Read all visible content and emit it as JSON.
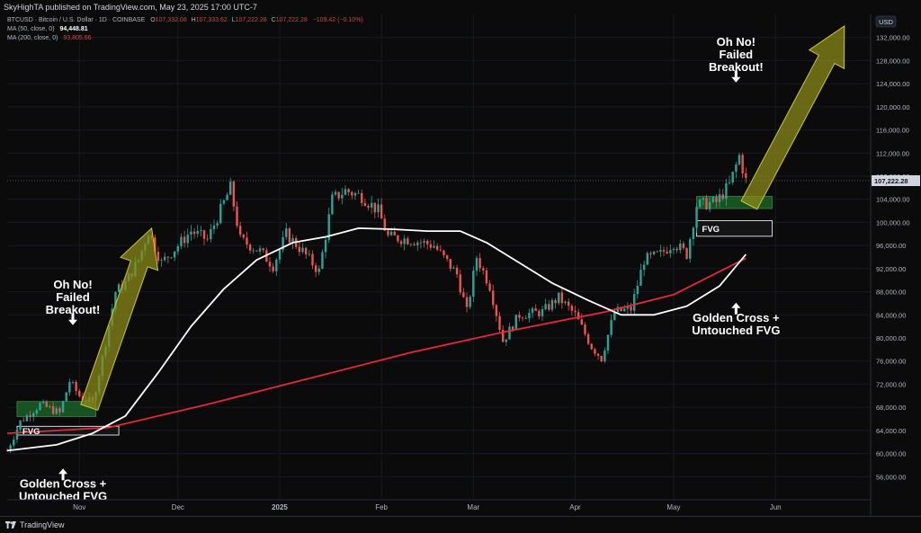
{
  "header": {
    "publisher_line": "SkyHighTA published on TradingView.com, May 23, 2025 17:00 UTC-7"
  },
  "legend": {
    "symbol": "BTCUSD · Bitcoin / U.S. Dollar · 1D · COINBASE",
    "ohlc": [
      {
        "k": "O",
        "v": "107,332.08"
      },
      {
        "k": "H",
        "v": "107,333.62"
      },
      {
        "k": "L",
        "v": "107,222.28"
      },
      {
        "k": "C",
        "v": "107,222.28"
      }
    ],
    "change": "−109.42 (−0.10%)",
    "ma50_label": "MA (50, close, 0)",
    "ma50_value": "94,448.81",
    "ma200_label": "MA (200, close, 0)",
    "ma200_value": "93,805.66"
  },
  "footer": {
    "brand": "TradingView"
  },
  "colors": {
    "up": "#26a69a",
    "down": "#ef5350",
    "ma50": "#ffffff",
    "ma200": "#e5283c",
    "fvg_box": "#1e6b2a",
    "arrow": "#8a8a1a",
    "background": "#0b0b0b"
  },
  "chart_data": {
    "type": "candlestick",
    "currency": "USD",
    "current_price_label": "107,222.28",
    "ylim": [
      52000,
      136000
    ],
    "y_ticks": [
      "56,000.00",
      "60,000.00",
      "64,000.00",
      "68,000.00",
      "72,000.00",
      "76,000.00",
      "80,000.00",
      "84,000.00",
      "88,000.00",
      "92,000.00",
      "96,000.00",
      "100,000.00",
      "104,000.00",
      "108,000.00",
      "112,000.00",
      "116,000.00",
      "120,000.00",
      "124,000.00",
      "128,000.00",
      "132,000.00"
    ],
    "x_ticks": [
      {
        "label": "Nov",
        "date": "2024-11-01"
      },
      {
        "label": "Dec",
        "date": "2024-12-01"
      },
      {
        "label": "2025",
        "date": "2025-01-01"
      },
      {
        "label": "Feb",
        "date": "2025-02-01"
      },
      {
        "label": "Mar",
        "date": "2025-03-01"
      },
      {
        "label": "Apr",
        "date": "2025-04-01"
      },
      {
        "label": "May",
        "date": "2025-05-01"
      },
      {
        "label": "Jun",
        "date": "2025-06-01"
      }
    ],
    "xlim": [
      "2024-10-10",
      "2025-06-30"
    ],
    "close_path": [
      [
        "2024-10-10",
        60500
      ],
      [
        "2024-10-14",
        65500
      ],
      [
        "2024-10-20",
        68500
      ],
      [
        "2024-10-26",
        67000
      ],
      [
        "2024-10-29",
        72500
      ],
      [
        "2024-11-01",
        70000
      ],
      [
        "2024-11-05",
        68800
      ],
      [
        "2024-11-08",
        76500
      ],
      [
        "2024-11-12",
        88000
      ],
      [
        "2024-11-15",
        89500
      ],
      [
        "2024-11-19",
        93500
      ],
      [
        "2024-11-22",
        98500
      ],
      [
        "2024-11-26",
        93000
      ],
      [
        "2024-12-01",
        96000
      ],
      [
        "2024-12-05",
        98500
      ],
      [
        "2024-12-10",
        97000
      ],
      [
        "2024-12-17",
        106000
      ],
      [
        "2024-12-20",
        97000
      ],
      [
        "2024-12-26",
        95000
      ],
      [
        "2024-12-30",
        92500
      ],
      [
        "2025-01-03",
        98000
      ],
      [
        "2025-01-08",
        95000
      ],
      [
        "2025-01-13",
        91500
      ],
      [
        "2025-01-17",
        104000
      ],
      [
        "2025-01-21",
        105500
      ],
      [
        "2025-01-26",
        104500
      ],
      [
        "2025-01-31",
        102000
      ],
      [
        "2025-02-03",
        97500
      ],
      [
        "2025-02-10",
        97000
      ],
      [
        "2025-02-17",
        96000
      ],
      [
        "2025-02-24",
        91000
      ],
      [
        "2025-02-27",
        84500
      ],
      [
        "2025-03-02",
        94000
      ],
      [
        "2025-03-06",
        89000
      ],
      [
        "2025-03-10",
        79500
      ],
      [
        "2025-03-15",
        84000
      ],
      [
        "2025-03-22",
        84500
      ],
      [
        "2025-03-27",
        87000
      ],
      [
        "2025-04-01",
        84000
      ],
      [
        "2025-04-06",
        78500
      ],
      [
        "2025-04-09",
        76500
      ],
      [
        "2025-04-13",
        84500
      ],
      [
        "2025-04-18",
        85000
      ],
      [
        "2025-04-22",
        93500
      ],
      [
        "2025-04-27",
        94500
      ],
      [
        "2025-05-01",
        96500
      ],
      [
        "2025-05-05",
        94500
      ],
      [
        "2025-05-08",
        103000
      ],
      [
        "2025-05-14",
        103500
      ],
      [
        "2025-05-18",
        106500
      ],
      [
        "2025-05-21",
        111500
      ],
      [
        "2025-05-23",
        107222
      ]
    ],
    "ma50": [
      [
        "2024-10-10",
        60500
      ],
      [
        "2024-10-25",
        61500
      ],
      [
        "2024-11-05",
        63500
      ],
      [
        "2024-11-15",
        66500
      ],
      [
        "2024-11-25",
        74000
      ],
      [
        "2024-12-05",
        82000
      ],
      [
        "2024-12-15",
        88500
      ],
      [
        "2024-12-25",
        93500
      ],
      [
        "2025-01-05",
        96500
      ],
      [
        "2025-01-15",
        97500
      ],
      [
        "2025-01-25",
        99000
      ],
      [
        "2025-02-05",
        98800
      ],
      [
        "2025-02-15",
        98500
      ],
      [
        "2025-02-25",
        98500
      ],
      [
        "2025-03-05",
        96500
      ],
      [
        "2025-03-15",
        93000
      ],
      [
        "2025-03-25",
        89500
      ],
      [
        "2025-04-05",
        86500
      ],
      [
        "2025-04-15",
        84000
      ],
      [
        "2025-04-25",
        84000
      ],
      [
        "2025-05-05",
        85500
      ],
      [
        "2025-05-15",
        89000
      ],
      [
        "2025-05-23",
        94448
      ]
    ],
    "ma200": [
      [
        "2024-10-10",
        63500
      ],
      [
        "2024-11-10",
        64500
      ],
      [
        "2024-12-10",
        68500
      ],
      [
        "2025-01-10",
        73000
      ],
      [
        "2025-02-10",
        77500
      ],
      [
        "2025-03-10",
        81000
      ],
      [
        "2025-04-10",
        84500
      ],
      [
        "2025-05-01",
        87500
      ],
      [
        "2025-05-23",
        93805
      ]
    ],
    "zones": [
      {
        "label": "",
        "start": "2024-10-13",
        "end": "2024-11-06",
        "low": 66400,
        "high": 69000,
        "kind": "green"
      },
      {
        "label": "FVG",
        "start": "2024-10-13",
        "end": "2024-11-13",
        "low": 63200,
        "high": 64700,
        "kind": "gray"
      },
      {
        "label": "",
        "start": "2025-05-08",
        "end": "2025-05-31",
        "low": 102400,
        "high": 104500,
        "kind": "green"
      },
      {
        "label": "FVG",
        "start": "2025-05-08",
        "end": "2025-05-31",
        "low": 97600,
        "high": 100300,
        "kind": "gray"
      }
    ],
    "annotations": [
      {
        "text": "Oh No!\nFailed\nBreakout!",
        "date": "2024-10-30",
        "value": 80500,
        "arrow": "down"
      },
      {
        "text": "Golden Cross +\nUntouched FVG",
        "date": "2024-10-27",
        "value": 58800,
        "arrow": "up"
      },
      {
        "text": "Oh No!\nFailed\nBreakout!",
        "date": "2025-05-20",
        "value": 122500,
        "arrow": "down"
      },
      {
        "text": "Golden Cross +\nUntouched FVG",
        "date": "2025-05-20",
        "value": 87500,
        "arrow": "up"
      }
    ],
    "projection_arrows": [
      {
        "from": [
          "2024-11-04",
          68000
        ],
        "to": [
          "2024-11-23",
          99000
        ]
      },
      {
        "from": [
          "2025-05-24",
          103000
        ],
        "to": [
          "2025-06-22",
          134000
        ]
      }
    ]
  }
}
